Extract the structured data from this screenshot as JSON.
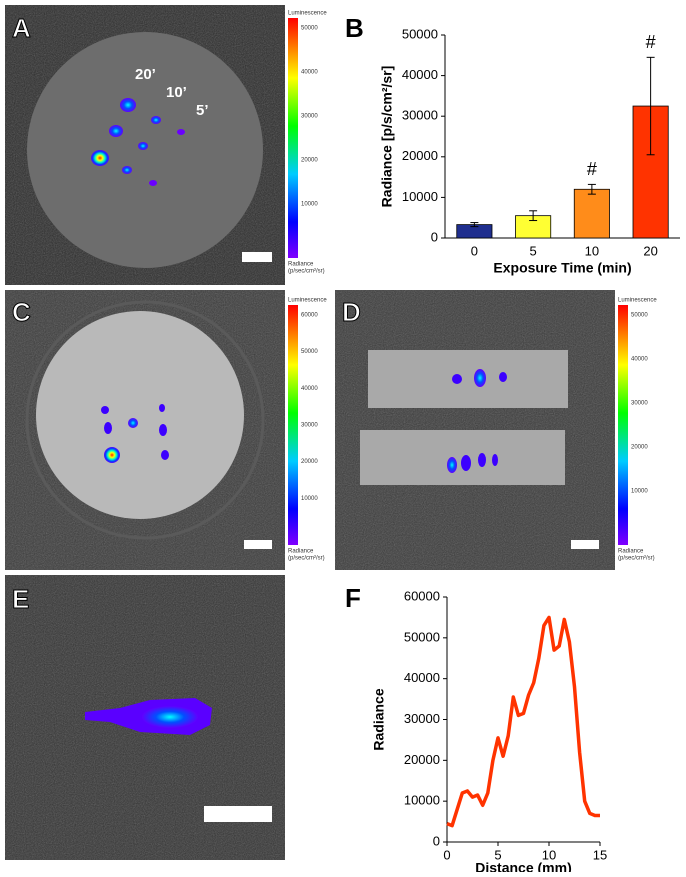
{
  "panels": {
    "a": {
      "label": "A",
      "annotations": [
        "20’",
        "10’",
        "5’"
      ],
      "colorbar": {
        "title": "Luminescence",
        "ticks": [
          "50000",
          "40000",
          "30000",
          "20000",
          "10000"
        ],
        "unit": [
          "Radiance",
          "(p/sec/cm²/sr)"
        ]
      }
    },
    "c": {
      "label": "C",
      "colorbar": {
        "title": "Luminescence",
        "ticks": [
          "60000",
          "50000",
          "40000",
          "30000",
          "20000",
          "10000"
        ],
        "unit": [
          "Radiance",
          "(p/sec/cm²/sr)"
        ]
      }
    },
    "d": {
      "label": "D",
      "colorbar": {
        "title": "Luminescence",
        "ticks": [
          "50000",
          "40000",
          "30000",
          "20000",
          "10000"
        ],
        "unit": [
          "Radiance",
          "(p/sec/cm²/sr)"
        ]
      }
    },
    "e": {
      "label": "E"
    }
  },
  "chart_data": [
    {
      "type": "bar",
      "panel_label": "B",
      "x_label": "Exposure Time (min)",
      "y_label": "Radiance [p/s/cm²/sr]",
      "categories": [
        "0",
        "5",
        "10",
        "20"
      ],
      "values": [
        3300,
        5500,
        12000,
        32500
      ],
      "errors": [
        500,
        1200,
        1200,
        12000
      ],
      "colors": [
        "#1f2e8e",
        "#ffff33",
        "#ff8c1a",
        "#ff3300"
      ],
      "annotations": [
        {
          "text": "#",
          "category": "10"
        },
        {
          "text": "#",
          "category": "20"
        }
      ],
      "ylim": [
        0,
        50000
      ],
      "yticks": [
        0,
        10000,
        20000,
        30000,
        40000,
        50000
      ]
    },
    {
      "type": "line",
      "panel_label": "F",
      "x_label": "Distance (mm)",
      "y_label": "Radiance",
      "color": "#ff3300",
      "x": [
        0,
        0.5,
        1,
        1.5,
        2,
        2.5,
        3,
        3.5,
        4,
        4.5,
        5,
        5.5,
        6,
        6.5,
        7,
        7.5,
        8,
        8.5,
        9,
        9.5,
        10,
        10.5,
        11,
        11.5,
        12,
        12.5,
        13,
        13.5,
        14,
        14.5,
        15
      ],
      "values": [
        4500,
        4000,
        8000,
        12000,
        12500,
        11000,
        11500,
        9000,
        12000,
        20000,
        25500,
        21000,
        26000,
        35500,
        31000,
        31500,
        36000,
        39000,
        45000,
        53000,
        55000,
        47000,
        48000,
        54500,
        49000,
        38000,
        22000,
        10000,
        7000,
        6500,
        6500
      ],
      "xlim": [
        0,
        15
      ],
      "xticks": [
        0,
        5,
        10,
        15
      ],
      "ylim": [
        0,
        60000
      ],
      "yticks": [
        0,
        10000,
        20000,
        30000,
        40000,
        50000,
        60000
      ]
    }
  ]
}
